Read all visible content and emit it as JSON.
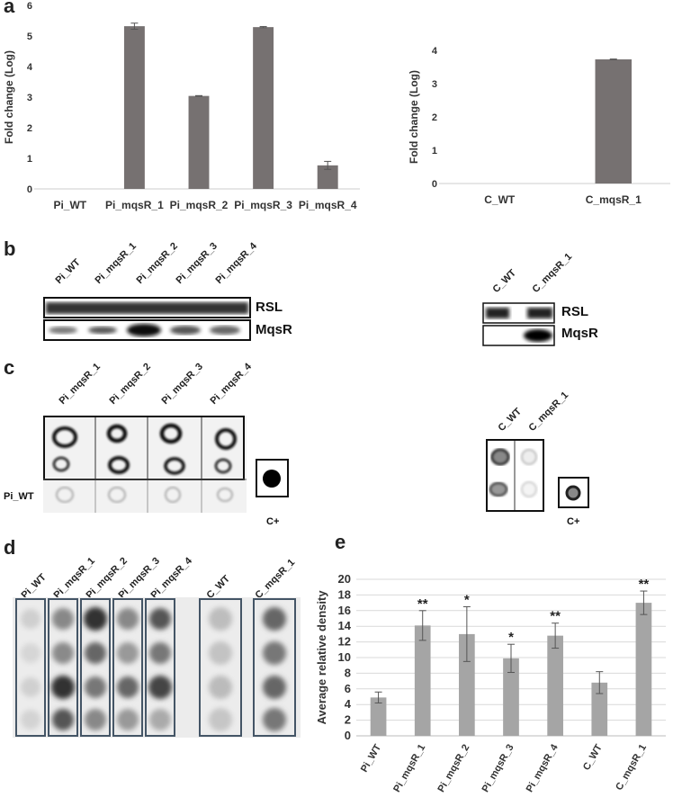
{
  "panel_letters": [
    "a",
    "b",
    "c",
    "d",
    "e"
  ],
  "chart_data": [
    {
      "id": "a-left",
      "type": "bar",
      "ylabel": "Fold change (Log)",
      "categories": [
        "Pi_WT",
        "Pi_mqsR_1",
        "Pi_mqsR_2",
        "Pi_mqsR_3",
        "Pi_mqsR_4"
      ],
      "values": [
        0,
        5.32,
        3.04,
        5.29,
        0.77
      ],
      "errors": [
        0,
        0.1,
        0.01,
        0.02,
        0.13
      ],
      "ylim": [
        0,
        6
      ],
      "yticks": [
        "0",
        "1",
        "2",
        "3",
        "4",
        "5",
        "6"
      ],
      "grid": false,
      "bar_color": "#767171"
    },
    {
      "id": "a-right",
      "type": "bar",
      "ylabel": "Fold change (Log)",
      "categories": [
        "C_WT",
        "C_mqsR_1"
      ],
      "values": [
        0,
        3.73
      ],
      "errors": [
        0,
        0.01
      ],
      "ylim": [
        0,
        4
      ],
      "yticks": [
        "0",
        "1",
        "2",
        "3",
        "4"
      ],
      "grid": false,
      "bar_color": "#767171"
    },
    {
      "id": "e",
      "type": "bar",
      "ylabel": "Average relative density",
      "categories": [
        "Pi_WT",
        "Pi_mqsR_1",
        "Pi_mqsR_2",
        "Pi_mqsR_3",
        "Pi_mqsR_4",
        "C_WT",
        "C_mqsR_1"
      ],
      "values": [
        4.9,
        14.1,
        13.0,
        9.9,
        12.8,
        6.8,
        17.0
      ],
      "errors": [
        0.7,
        1.9,
        3.5,
        1.8,
        1.6,
        1.4,
        1.5
      ],
      "significance": [
        "",
        "**",
        "*",
        "*",
        "**",
        "",
        "**"
      ],
      "ylim": [
        0,
        20
      ],
      "yticks": [
        "0",
        "2",
        "4",
        "6",
        "8",
        "10",
        "12",
        "14",
        "16",
        "18",
        "20"
      ],
      "grid": true,
      "bar_color": "#a5a5a5"
    }
  ],
  "panel_b": {
    "left_lanes": [
      "Pi_WT",
      "Pi_mqsR_1",
      "Pi_mqsR_2",
      "Pi_mqsR_3",
      "Pi_mqsR_4"
    ],
    "right_lanes": [
      "C_WT",
      "C_mqsR_1"
    ],
    "rows": [
      "RSL",
      "MqsR"
    ]
  },
  "panel_c": {
    "left_lanes": [
      "Pi_mqsR_1",
      "Pi_mqsR_2",
      "Pi_mqsR_3",
      "Pi_mqsR_4"
    ],
    "row_label": "Pi_WT",
    "control_label": "C+",
    "right_lanes": [
      "C_WT",
      "C_mqsR_1"
    ],
    "right_control_label": "C+"
  },
  "panel_d": {
    "left_lanes": [
      "Pi_WT",
      "Pi_mqsR_1",
      "Pi_mqsR_2",
      "Pi_mqsR_3",
      "Pi_mqsR_4"
    ],
    "right_lanes": [
      "C_WT",
      "C_mqsR_1"
    ]
  }
}
